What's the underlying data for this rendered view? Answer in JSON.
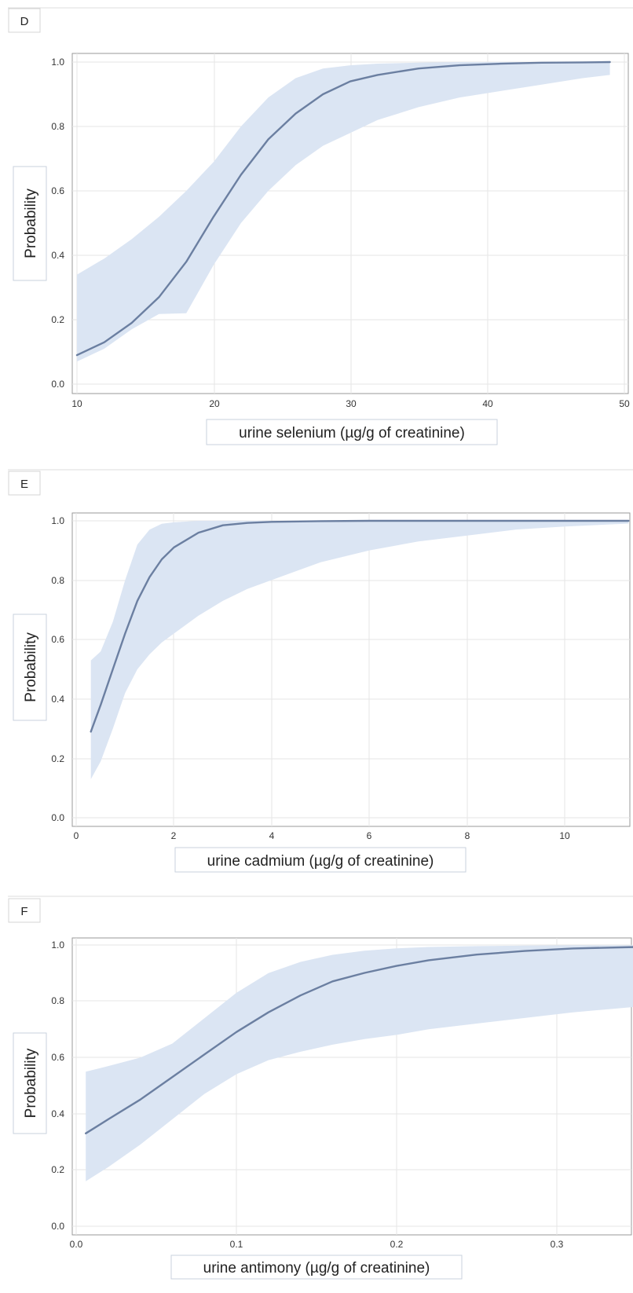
{
  "colors": {
    "band": "#dbe5f3",
    "line": "#6b7fa1",
    "grid": "#e6e6e6",
    "frame": "#9a9a9a",
    "box_border": "#c9d2de"
  },
  "chart_data": [
    {
      "type": "line",
      "panel_label": "D",
      "xlabel": "urine selenium (µg/g of creatinine)",
      "ylabel": "Probability",
      "xlim": [
        10,
        50
      ],
      "ylim": [
        0,
        1
      ],
      "x_ticks": [
        "10",
        "20",
        "30",
        "40",
        "50"
      ],
      "y_ticks": [
        "0.0",
        "0.2",
        "0.4",
        "0.6",
        "0.8",
        "1.0"
      ],
      "grid": true,
      "series": [
        {
          "x": [
            10,
            12,
            14,
            16,
            18,
            20,
            22,
            24,
            26,
            28,
            30,
            32,
            35,
            38,
            41,
            44,
            47,
            49
          ],
          "y": [
            0.09,
            0.13,
            0.19,
            0.27,
            0.38,
            0.52,
            0.65,
            0.76,
            0.84,
            0.9,
            0.94,
            0.96,
            0.98,
            0.99,
            0.995,
            0.998,
            0.999,
            1.0
          ],
          "lower": [
            0.02,
            0.04,
            0.07,
            0.12,
            0.22,
            0.37,
            0.5,
            0.6,
            0.68,
            0.74,
            0.78,
            0.82,
            0.86,
            0.89,
            0.91,
            0.93,
            0.95,
            0.96
          ],
          "upper": [
            0.34,
            0.39,
            0.45,
            0.52,
            0.6,
            0.69,
            0.8,
            0.89,
            0.95,
            0.98,
            0.99,
            0.995,
            0.998,
            1.0,
            1.0,
            1.0,
            1.0,
            1.0
          ]
        }
      ]
    },
    {
      "type": "line",
      "panel_label": "E",
      "xlabel": "urine cadmium (µg/g of creatinine)",
      "ylabel": "Probability",
      "xlim": [
        0,
        11.3
      ],
      "ylim": [
        0,
        1
      ],
      "x_ticks": [
        "0",
        "2",
        "4",
        "6",
        "8",
        "10"
      ],
      "y_ticks": [
        "0.0",
        "0.2",
        "0.4",
        "0.6",
        "0.8",
        "1.0"
      ],
      "grid": true,
      "series": [
        {
          "x": [
            0.3,
            0.5,
            0.75,
            1.0,
            1.25,
            1.5,
            1.75,
            2.0,
            2.5,
            3.0,
            3.5,
            4.0,
            5.0,
            6.0,
            7.0,
            8.0,
            9.0,
            10.0,
            11.3
          ],
          "y": [
            0.29,
            0.38,
            0.5,
            0.62,
            0.73,
            0.81,
            0.87,
            0.91,
            0.96,
            0.985,
            0.993,
            0.997,
            0.999,
            1.0,
            1.0,
            1.0,
            1.0,
            1.0,
            1.0
          ],
          "lower": [
            0.13,
            0.19,
            0.3,
            0.42,
            0.5,
            0.55,
            0.59,
            0.62,
            0.68,
            0.73,
            0.77,
            0.8,
            0.86,
            0.9,
            0.93,
            0.95,
            0.97,
            0.98,
            0.99
          ],
          "upper": [
            0.53,
            0.56,
            0.66,
            0.8,
            0.92,
            0.97,
            0.99,
            0.995,
            1.0,
            1.0,
            1.0,
            1.0,
            1.0,
            1.0,
            1.0,
            1.0,
            1.0,
            1.0,
            1.0
          ]
        }
      ]
    },
    {
      "type": "line",
      "panel_label": "F",
      "xlabel": "urine antimony (µg/g of creatinine)",
      "ylabel": "Probability",
      "xlim": [
        0,
        0.35
      ],
      "ylim": [
        0,
        1
      ],
      "x_ticks": [
        "0.0",
        "0.1",
        "0.2",
        "0.3"
      ],
      "y_ticks": [
        "0.0",
        "0.2",
        "0.4",
        "0.6",
        "0.8",
        "1.0"
      ],
      "grid": true,
      "series": [
        {
          "x": [
            0.006,
            0.02,
            0.04,
            0.06,
            0.08,
            0.1,
            0.12,
            0.14,
            0.16,
            0.18,
            0.2,
            0.22,
            0.25,
            0.28,
            0.31,
            0.35
          ],
          "y": [
            0.33,
            0.38,
            0.45,
            0.53,
            0.61,
            0.69,
            0.76,
            0.82,
            0.87,
            0.9,
            0.925,
            0.945,
            0.965,
            0.978,
            0.987,
            0.993
          ],
          "lower": [
            0.16,
            0.21,
            0.29,
            0.38,
            0.47,
            0.54,
            0.59,
            0.62,
            0.645,
            0.665,
            0.68,
            0.7,
            0.72,
            0.74,
            0.76,
            0.78
          ],
          "upper": [
            0.56,
            0.58,
            0.61,
            0.66,
            0.74,
            0.83,
            0.9,
            0.94,
            0.965,
            0.98,
            0.988,
            0.993,
            0.996,
            0.998,
            0.999,
            0.999
          ]
        }
      ]
    }
  ]
}
